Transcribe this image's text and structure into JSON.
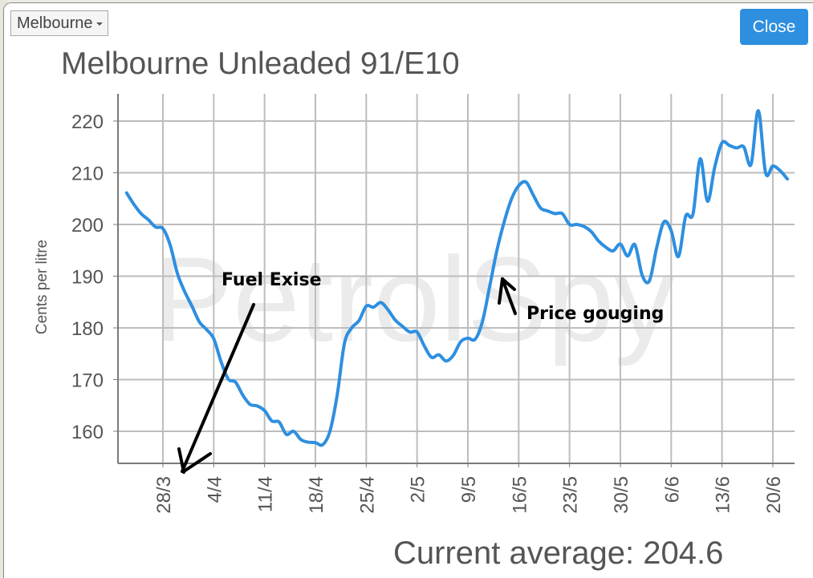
{
  "header": {
    "city_select": "Melbourne",
    "close_label": "Close"
  },
  "chart_title": "Melbourne Unleaded 91/E10",
  "current_average": "Current average: 204.6",
  "watermark": "PetrolSpy",
  "annotations": [
    {
      "text": "Fuel Exise"
    },
    {
      "text": "Price gouging"
    }
  ],
  "colors": {
    "line": "#2e8fe0",
    "close_button": "#2e8fe0",
    "grid": "#bdbdbd",
    "axis": "#7a7a7a",
    "text": "#555555"
  },
  "chart_data": {
    "type": "line",
    "title": "Melbourne Unleaded 91/E10",
    "xlabel": "",
    "ylabel": "Cents per litre",
    "ylim": [
      154,
      226
    ],
    "yticks": [
      160,
      170,
      180,
      190,
      200,
      210,
      220
    ],
    "xticks": [
      "28/3",
      "4/4",
      "11/4",
      "18/4",
      "25/4",
      "2/5",
      "9/5",
      "16/5",
      "23/5",
      "30/5",
      "6/6",
      "13/6",
      "20/6"
    ],
    "grid": true,
    "legend": "none",
    "series": [
      {
        "name": "Melbourne Unleaded 91/E10",
        "points": [
          [
            "23/3",
            206.1
          ],
          [
            "24/3",
            203.9
          ],
          [
            "25/3",
            202.1
          ],
          [
            "26/3",
            200.9
          ],
          [
            "27/3",
            199.5
          ],
          [
            "28/3",
            199.2
          ],
          [
            "29/3",
            196.0
          ],
          [
            "30/3",
            190.5
          ],
          [
            "31/3",
            187.0
          ],
          [
            "1/4",
            184.2
          ],
          [
            "2/4",
            181.2
          ],
          [
            "3/4",
            179.7
          ],
          [
            "4/4",
            177.9
          ],
          [
            "5/4",
            173.5
          ],
          [
            "6/4",
            170.1
          ],
          [
            "7/4",
            169.5
          ],
          [
            "8/4",
            167.0
          ],
          [
            "9/4",
            165.2
          ],
          [
            "10/4",
            164.9
          ],
          [
            "11/4",
            164.0
          ],
          [
            "12/4",
            162.0
          ],
          [
            "13/4",
            161.8
          ],
          [
            "14/4",
            159.4
          ],
          [
            "15/4",
            160.0
          ],
          [
            "16/4",
            158.4
          ],
          [
            "17/4",
            157.9
          ],
          [
            "18/4",
            157.8
          ],
          [
            "19/4",
            157.4
          ],
          [
            "20/4",
            160.0
          ],
          [
            "21/4",
            167.0
          ],
          [
            "22/4",
            177.0
          ],
          [
            "23/4",
            180.0
          ],
          [
            "24/4",
            181.4
          ],
          [
            "25/4",
            184.2
          ],
          [
            "26/4",
            184.0
          ],
          [
            "27/4",
            184.9
          ],
          [
            "28/4",
            183.5
          ],
          [
            "29/4",
            181.5
          ],
          [
            "30/4",
            180.3
          ],
          [
            "1/5",
            179.2
          ],
          [
            "2/5",
            179.2
          ],
          [
            "3/5",
            176.5
          ],
          [
            "4/5",
            174.3
          ],
          [
            "5/5",
            174.8
          ],
          [
            "6/5",
            173.6
          ],
          [
            "7/5",
            174.7
          ],
          [
            "8/5",
            177.3
          ],
          [
            "9/5",
            178.0
          ],
          [
            "10/5",
            177.8
          ],
          [
            "11/5",
            181.2
          ],
          [
            "12/5",
            188.0
          ],
          [
            "13/5",
            195.0
          ],
          [
            "14/5",
            200.5
          ],
          [
            "15/5",
            204.9
          ],
          [
            "16/5",
            207.5
          ],
          [
            "17/5",
            208.2
          ],
          [
            "18/5",
            205.7
          ],
          [
            "19/5",
            203.2
          ],
          [
            "20/5",
            202.6
          ],
          [
            "21/5",
            202.1
          ],
          [
            "22/5",
            202.1
          ],
          [
            "23/5",
            200.0
          ],
          [
            "24/5",
            200.0
          ],
          [
            "25/5",
            199.6
          ],
          [
            "26/5",
            198.6
          ],
          [
            "27/5",
            196.8
          ],
          [
            "28/5",
            195.6
          ],
          [
            "29/5",
            194.9
          ],
          [
            "30/5",
            196.2
          ],
          [
            "31/5",
            193.9
          ],
          [
            "1/6",
            196.1
          ],
          [
            "2/6",
            190.2
          ],
          [
            "3/6",
            189.1
          ],
          [
            "4/6",
            195.5
          ],
          [
            "5/6",
            200.5
          ],
          [
            "6/6",
            198.8
          ],
          [
            "7/6",
            193.8
          ],
          [
            "8/6",
            201.6
          ],
          [
            "9/6",
            202.0
          ],
          [
            "10/6",
            212.7
          ],
          [
            "11/6",
            204.5
          ],
          [
            "12/6",
            211.1
          ],
          [
            "13/6",
            215.8
          ],
          [
            "14/6",
            215.3
          ],
          [
            "15/6",
            214.8
          ],
          [
            "16/6",
            215.0
          ],
          [
            "17/6",
            211.6
          ],
          [
            "18/6",
            222.0
          ],
          [
            "19/6",
            210.0
          ],
          [
            "20/6",
            211.3
          ],
          [
            "21/6",
            210.4
          ],
          [
            "22/6",
            208.8
          ]
        ]
      }
    ]
  }
}
